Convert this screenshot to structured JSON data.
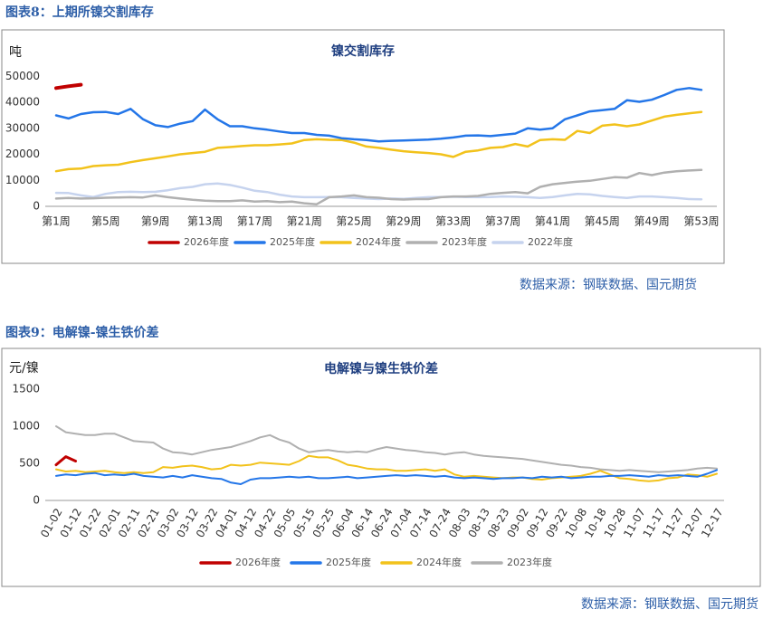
{
  "chart_data": [
    {
      "type": "line",
      "caption": "图表8：上期所镍交割库存",
      "title": "镍交割库存",
      "y_label": "吨",
      "source": "数据来源：钢联数据、国元期货",
      "categories": [
        "第1周",
        null,
        null,
        null,
        "第5周",
        null,
        null,
        null,
        "第9周",
        null,
        null,
        null,
        "第13周",
        null,
        null,
        null,
        "第17周",
        null,
        null,
        null,
        "第21周",
        null,
        null,
        null,
        "第25周",
        null,
        null,
        null,
        "第29周",
        null,
        null,
        null,
        "第33周",
        null,
        null,
        null,
        "第37周",
        null,
        null,
        null,
        "第41周",
        null,
        null,
        null,
        "第45周",
        null,
        null,
        null,
        "第49周",
        null,
        null,
        null,
        "第53周"
      ],
      "ylim": [
        0,
        55000
      ],
      "yticks": [
        0,
        10000,
        20000,
        30000,
        40000,
        50000
      ],
      "grid": false,
      "legend": "bottom",
      "series": [
        {
          "name": "2026年度",
          "color": "#c00000",
          "width": 4,
          "values": [
            45500,
            46200,
            46800,
            null,
            null,
            null,
            null,
            null,
            null,
            null,
            null,
            null,
            null,
            null,
            null,
            null,
            null,
            null,
            null,
            null,
            null,
            null,
            null,
            null,
            null,
            null,
            null,
            null,
            null,
            null,
            null,
            null,
            null,
            null,
            null,
            null,
            null,
            null,
            null,
            null,
            null,
            null,
            null,
            null,
            null,
            null,
            null,
            null,
            null,
            null,
            null,
            null,
            null
          ]
        },
        {
          "name": "2025年度",
          "color": "#2476e8",
          "width": 2.5,
          "values": [
            35000,
            33800,
            35500,
            36200,
            36300,
            35500,
            37500,
            33500,
            31200,
            30500,
            31800,
            32800,
            37200,
            33500,
            30800,
            30800,
            30000,
            29500,
            28800,
            28200,
            28200,
            27500,
            27200,
            26200,
            25800,
            25500,
            25000,
            25200,
            25300,
            25500,
            25700,
            26000,
            26500,
            27200,
            27300,
            27000,
            27500,
            28000,
            30000,
            29500,
            30000,
            33500,
            35000,
            36500,
            37000,
            37500,
            40800,
            40200,
            41000,
            42800,
            44800,
            45500,
            44800
          ]
        },
        {
          "name": "2024年度",
          "color": "#f2c21b",
          "width": 2.5,
          "values": [
            13500,
            14300,
            14500,
            15500,
            15800,
            16000,
            17000,
            17800,
            18500,
            19200,
            20000,
            20500,
            21000,
            22500,
            22800,
            23200,
            23500,
            23500,
            23800,
            24200,
            25500,
            25800,
            25600,
            25500,
            24500,
            23000,
            22500,
            21800,
            21200,
            20800,
            20500,
            20000,
            19000,
            21000,
            21500,
            22500,
            22800,
            24000,
            23000,
            25500,
            25800,
            25600,
            29000,
            28200,
            31000,
            31500,
            30800,
            31500,
            33000,
            34500,
            35200,
            35800,
            36300
          ]
        },
        {
          "name": "2023年度",
          "color": "#b0b0b0",
          "width": 2.5,
          "values": [
            3000,
            3200,
            3000,
            3100,
            3300,
            3400,
            3500,
            3400,
            4200,
            3500,
            3000,
            2500,
            2200,
            2000,
            2000,
            2300,
            1800,
            2000,
            1600,
            1800,
            1200,
            800,
            3500,
            3800,
            4200,
            3500,
            3300,
            2800,
            2600,
            2800,
            2800,
            3500,
            3800,
            3800,
            4000,
            4800,
            5200,
            5500,
            5000,
            7500,
            8500,
            9000,
            9500,
            9800,
            10500,
            11200,
            11000,
            12800,
            12000,
            13000,
            13500,
            13800,
            14000
          ]
        },
        {
          "name": "2022年度",
          "color": "#c6d3ee",
          "width": 2.5,
          "values": [
            5200,
            5100,
            4200,
            3600,
            4800,
            5500,
            5600,
            5500,
            5600,
            6200,
            7000,
            7500,
            8500,
            8800,
            8200,
            7200,
            6000,
            5500,
            4500,
            3800,
            3500,
            3500,
            3600,
            3500,
            3200,
            3000,
            2800,
            3000,
            2900,
            3200,
            3500,
            3600,
            3700,
            3600,
            3500,
            3600,
            3800,
            3700,
            3500,
            3200,
            3600,
            4200,
            4800,
            4600,
            4000,
            3600,
            3200,
            3800,
            3800,
            3500,
            3200,
            2800,
            2700
          ]
        }
      ]
    },
    {
      "type": "line",
      "caption": "图表9：电解镍-镍生铁价差",
      "title": "电解镍与镍生铁价差",
      "y_label": "元/镍",
      "source": "数据来源：钢联数据、国元期货",
      "categories": [
        "01-02",
        null,
        "01-12",
        null,
        "01-22",
        null,
        "02-01",
        null,
        "02-11",
        null,
        "02-21",
        null,
        "03-02",
        null,
        "03-12",
        null,
        "03-22",
        null,
        "04-01",
        null,
        "04-12",
        null,
        "04-22",
        null,
        "05-05",
        null,
        "05-15",
        null,
        "05-25",
        null,
        "06-04",
        null,
        "06-14",
        null,
        "06-24",
        null,
        "07-04",
        null,
        "07-14",
        null,
        "07-24",
        null,
        "08-03",
        null,
        "08-13",
        null,
        "08-23",
        null,
        "09-02",
        null,
        "09-12",
        null,
        "09-22",
        null,
        "10-08",
        null,
        "10-18",
        null,
        "10-28",
        null,
        "11-07",
        null,
        "11-17",
        null,
        "11-27",
        null,
        "12-07",
        null,
        "12-17"
      ],
      "ylim": [
        0,
        1500
      ],
      "yticks": [
        0,
        500,
        1000,
        1500
      ],
      "grid": false,
      "legend": "bottom",
      "series": [
        {
          "name": "2026年度",
          "color": "#c00000",
          "width": 3,
          "values": [
            480,
            590,
            530,
            null,
            null,
            null,
            null,
            null,
            null,
            null,
            null,
            null,
            null,
            null,
            null,
            null,
            null,
            null,
            null,
            null,
            null,
            null,
            null,
            null,
            null,
            null,
            null,
            null,
            null,
            null,
            null,
            null,
            null,
            null,
            null,
            null,
            null,
            null,
            null,
            null,
            null,
            null,
            null,
            null,
            null,
            null,
            null,
            null,
            null,
            null,
            null,
            null,
            null,
            null,
            null,
            null,
            null,
            null,
            null,
            null,
            null,
            null,
            null,
            null,
            null,
            null,
            null,
            null,
            null
          ]
        },
        {
          "name": "2025年度",
          "color": "#2476e8",
          "width": 2,
          "values": [
            330,
            350,
            340,
            360,
            370,
            340,
            350,
            340,
            360,
            330,
            320,
            310,
            330,
            310,
            340,
            320,
            300,
            290,
            240,
            220,
            280,
            300,
            300,
            310,
            320,
            310,
            320,
            300,
            300,
            310,
            320,
            300,
            310,
            320,
            330,
            340,
            330,
            340,
            330,
            320,
            330,
            310,
            300,
            310,
            300,
            290,
            300,
            300,
            310,
            300,
            320,
            310,
            320,
            300,
            310,
            320,
            320,
            330,
            330,
            340,
            330,
            320,
            340,
            330,
            340,
            330,
            320,
            360,
            410
          ]
        },
        {
          "name": "2024年度",
          "color": "#f2c21b",
          "width": 2,
          "values": [
            420,
            390,
            400,
            380,
            390,
            400,
            380,
            370,
            380,
            370,
            380,
            450,
            440,
            460,
            470,
            450,
            420,
            430,
            480,
            470,
            480,
            510,
            500,
            490,
            480,
            530,
            600,
            580,
            580,
            540,
            480,
            460,
            430,
            420,
            420,
            400,
            400,
            410,
            420,
            400,
            420,
            350,
            320,
            330,
            320,
            310,
            300,
            310,
            310,
            290,
            280,
            300,
            310,
            320,
            330,
            360,
            400,
            350,
            300,
            290,
            270,
            260,
            270,
            300,
            310,
            350,
            340,
            320,
            360
          ]
        },
        {
          "name": "2023年度",
          "color": "#b0b0b0",
          "width": 2,
          "values": [
            1000,
            920,
            900,
            880,
            880,
            900,
            900,
            850,
            800,
            790,
            780,
            700,
            650,
            640,
            620,
            650,
            680,
            700,
            720,
            760,
            800,
            850,
            880,
            820,
            780,
            700,
            650,
            670,
            680,
            660,
            650,
            660,
            650,
            690,
            720,
            700,
            680,
            670,
            650,
            640,
            620,
            640,
            650,
            620,
            600,
            590,
            580,
            570,
            560,
            540,
            520,
            500,
            480,
            470,
            450,
            440,
            420,
            410,
            400,
            410,
            400,
            390,
            380,
            390,
            400,
            410,
            430,
            440,
            430
          ]
        }
      ]
    }
  ]
}
